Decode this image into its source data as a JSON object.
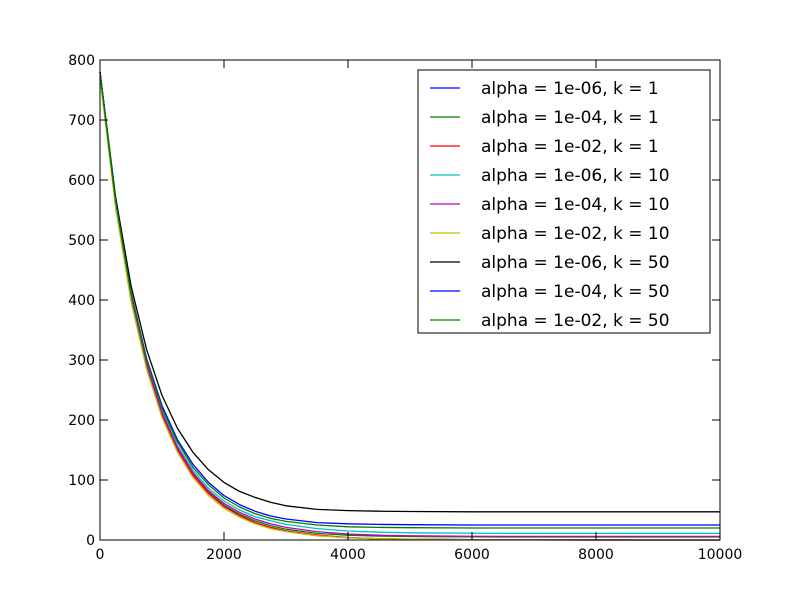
{
  "chart_data": {
    "type": "line",
    "title": "",
    "xlabel": "",
    "ylabel": "",
    "xlim": [
      0,
      10000
    ],
    "ylim": [
      0,
      800
    ],
    "x_ticks": [
      "0",
      "2000",
      "4000",
      "6000",
      "8000",
      "10000"
    ],
    "y_ticks": [
      "0",
      "100",
      "200",
      "300",
      "400",
      "500",
      "600",
      "700",
      "800"
    ],
    "grid": false,
    "legend_position": "top-right",
    "x": [
      0,
      250,
      500,
      750,
      1000,
      1250,
      1500,
      1750,
      2000,
      2250,
      2500,
      2750,
      3000,
      3500,
      4000,
      4500,
      5000,
      6000,
      7000,
      8000,
      9000,
      10000
    ],
    "series": [
      {
        "name": "alpha = 1e-06, k = 1",
        "color": "#0000ff",
        "values": [
          780,
          562,
          404,
          291,
          209,
          151,
          108,
          78,
          56,
          41,
          29,
          21,
          15,
          8,
          4,
          2,
          1.4,
          0.5,
          0.2,
          0.1,
          0,
          0
        ]
      },
      {
        "name": "alpha = 1e-04, k = 1",
        "color": "#008000",
        "values": [
          780,
          562,
          405,
          292,
          210,
          152,
          110,
          80,
          58,
          43,
          32,
          24,
          18,
          11,
          8,
          6.5,
          5.8,
          5.2,
          5.1,
          5,
          5,
          5
        ]
      },
      {
        "name": "alpha = 1e-02, k = 1",
        "color": "#ff0000",
        "values": [
          780,
          562,
          404,
          291,
          209,
          151,
          108,
          78,
          56,
          41,
          29,
          21,
          15,
          8,
          4,
          2,
          1.4,
          0.5,
          0.2,
          0.1,
          0,
          0
        ]
      },
      {
        "name": "alpha = 1e-06, k = 10",
        "color": "#00bfbf",
        "values": [
          780,
          564,
          408,
          296,
          215,
          157,
          116,
          86,
          65,
          50,
          39,
          32,
          26,
          19,
          15,
          13,
          12,
          11.2,
          11,
          11,
          11,
          11
        ]
      },
      {
        "name": "alpha = 1e-04, k = 10",
        "color": "#bf00bf",
        "values": [
          780,
          563,
          406,
          293,
          212,
          154,
          112,
          82,
          61,
          46,
          35,
          27,
          21,
          14,
          10,
          8,
          7,
          6.2,
          6,
          6,
          6,
          6
        ]
      },
      {
        "name": "alpha = 1e-02, k = 10",
        "color": "#bfbf00",
        "values": [
          770,
          555,
          398,
          285,
          204,
          146,
          104,
          74,
          53,
          38,
          27,
          19,
          14,
          7,
          3.5,
          2,
          1.2,
          0.4,
          0.2,
          0.1,
          0,
          0
        ]
      },
      {
        "name": "alpha = 1e-06, k = 50",
        "color": "#000000",
        "values": [
          780,
          573,
          424,
          318,
          241,
          186,
          146,
          117,
          96,
          81,
          71,
          63,
          57,
          51,
          49,
          48,
          47.5,
          47,
          47,
          47,
          47,
          47
        ]
      },
      {
        "name": "alpha = 1e-04, k = 50",
        "color": "#0000ff",
        "values": [
          780,
          567,
          413,
          303,
          224,
          167,
          126,
          96,
          74,
          59,
          48,
          40,
          35,
          29,
          27,
          26,
          25.5,
          25,
          25,
          25,
          25,
          25
        ]
      },
      {
        "name": "alpha = 1e-02, k = 50",
        "color": "#008000",
        "values": [
          780,
          566,
          411,
          300,
          220,
          163,
          121,
          92,
          70,
          55,
          44,
          36,
          31,
          25,
          22,
          21,
          20.5,
          20,
          20,
          20,
          20,
          20
        ]
      }
    ]
  }
}
